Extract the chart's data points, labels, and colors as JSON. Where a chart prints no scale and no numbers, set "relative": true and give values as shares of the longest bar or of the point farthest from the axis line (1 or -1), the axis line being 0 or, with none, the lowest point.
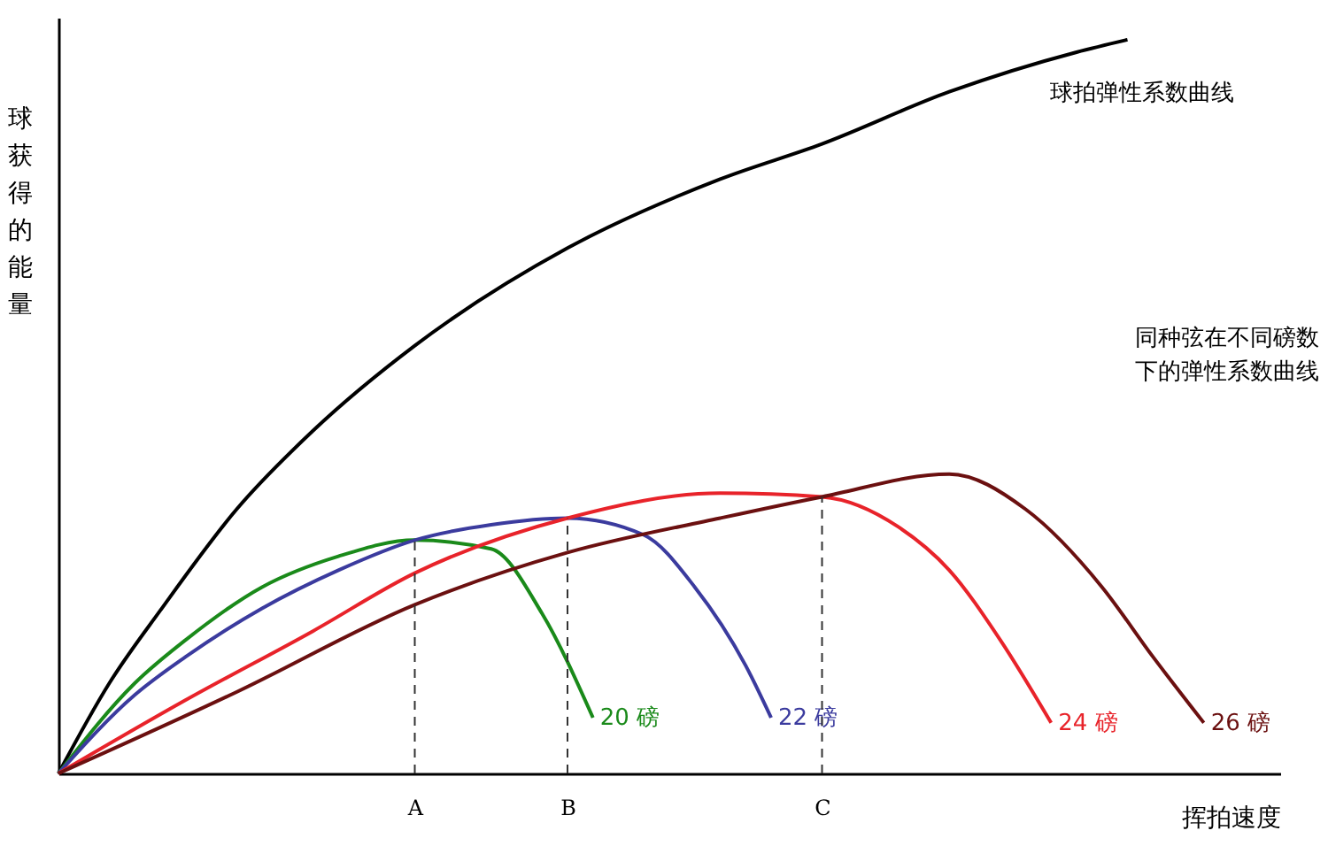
{
  "chart_data": {
    "type": "line",
    "relative": true,
    "xlabel": "挥拍速度",
    "ylabel": "球获得的能量",
    "categories": [
      null,
      null,
      null,
      null,
      null,
      null,
      null,
      null,
      null,
      null,
      null,
      null,
      null,
      null,
      "A",
      null,
      null,
      null,
      null,
      null,
      "B",
      null,
      null,
      null,
      null,
      null,
      null,
      null,
      null,
      null,
      "C",
      null,
      null,
      null,
      null,
      null,
      null,
      null,
      null,
      null,
      null,
      null,
      null,
      null,
      null,
      null,
      null,
      null,
      null
    ],
    "series": [
      {
        "name": "球拍弹性系数曲线",
        "color": "#000000",
        "values": [
          0,
          null,
          0.123,
          null,
          0.222,
          null,
          null,
          0.36,
          null,
          null,
          0.467,
          null,
          null,
          null,
          0.583,
          null,
          null,
          null,
          null,
          null,
          0.716,
          null,
          null,
          null,
          null,
          null,
          0.81,
          null,
          null,
          null,
          0.858,
          null,
          null,
          null,
          null,
          0.929,
          null,
          null,
          null,
          null,
          0.983,
          null,
          1,
          null,
          null,
          null,
          null,
          null,
          null
        ]
      },
      {
        "name": "20 磅",
        "color": "#1a8a1a",
        "values": [
          0,
          null,
          null,
          0.123,
          null,
          0.182,
          null,
          null,
          0.254,
          null,
          null,
          0.296,
          null,
          null,
          0.318,
          null,
          null,
          0.306,
          null,
          0.218,
          null,
          0.076,
          null,
          null,
          null,
          null,
          null,
          null,
          null,
          null,
          null,
          null,
          null,
          null,
          null,
          null,
          null,
          null,
          null,
          null,
          null,
          null,
          null,
          null,
          null,
          null,
          null,
          null,
          null
        ]
      },
      {
        "name": "22 磅",
        "color": "#3b3b9e",
        "values": [
          0,
          null,
          null,
          0.107,
          null,
          0.159,
          null,
          null,
          0.225,
          null,
          null,
          0.277,
          null,
          null,
          0.318,
          null,
          null,
          0.339,
          null,
          null,
          0.348,
          null,
          null,
          0.325,
          null,
          0.254,
          null,
          0.147,
          0.076,
          null,
          null,
          null,
          null,
          null,
          null,
          null,
          null,
          null,
          null,
          null,
          null,
          null,
          null,
          null,
          null,
          null,
          null,
          null,
          null
        ]
      },
      {
        "name": "24 磅",
        "color": "#e8232a",
        "values": [
          0,
          null,
          null,
          null,
          null,
          0.1,
          null,
          null,
          null,
          null,
          0.194,
          null,
          null,
          null,
          0.273,
          null,
          null,
          null,
          null,
          null,
          0.348,
          null,
          null,
          null,
          null,
          null,
          0.382,
          null,
          null,
          null,
          0.377,
          null,
          null,
          0.336,
          null,
          0.277,
          null,
          0.182,
          null,
          0.069,
          null,
          null,
          null,
          null,
          null,
          null,
          null,
          null,
          null
        ]
      },
      {
        "name": "26 磅",
        "color": "#6b1010",
        "values": [
          0,
          null,
          null,
          null,
          null,
          null,
          null,
          0.111,
          null,
          null,
          null,
          null,
          null,
          null,
          0.23,
          null,
          null,
          null,
          null,
          null,
          0.301,
          null,
          null,
          null,
          null,
          null,
          0.348,
          null,
          null,
          null,
          0.377,
          null,
          null,
          null,
          null,
          0.408,
          null,
          null,
          0.36,
          null,
          null,
          0.254,
          null,
          0.159,
          null,
          0.069,
          null,
          null,
          null
        ]
      }
    ],
    "ref_lines": [
      {
        "axis": "x",
        "value": "A",
        "line_style": "dashed"
      },
      {
        "axis": "x",
        "value": "B",
        "line_style": "dashed"
      },
      {
        "axis": "x",
        "value": "C",
        "line_style": "dashed"
      }
    ],
    "annotations": [
      "同种弦在不同磅数下的弹性系数曲线"
    ],
    "line_style": "solid",
    "marker": "none"
  }
}
